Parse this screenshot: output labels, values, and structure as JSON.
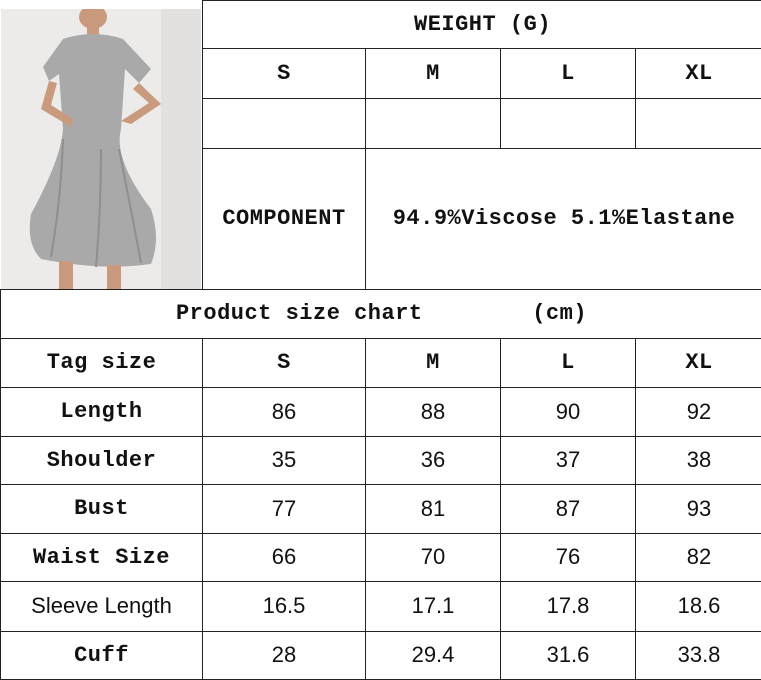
{
  "weight_header": "WEIGHT (G)",
  "sizes": [
    "S",
    "M",
    "L",
    "XL"
  ],
  "weights": [
    "",
    "",
    "",
    ""
  ],
  "component": {
    "label": "COMPONENT",
    "value": "94.9%Viscose 5.1%Elastane"
  },
  "size_chart": {
    "title": "Product size chart        (cm)",
    "header": {
      "label": "Tag size",
      "values": [
        "S",
        "M",
        "L",
        "XL"
      ]
    },
    "rows": [
      {
        "label": "Length",
        "values": [
          "86",
          "88",
          "90",
          "92"
        ]
      },
      {
        "label": "Shoulder",
        "values": [
          "35",
          "36",
          "37",
          "38"
        ]
      },
      {
        "label": "Bust",
        "values": [
          "77",
          "81",
          "87",
          "93"
        ]
      },
      {
        "label": "Waist Size",
        "values": [
          "66",
          "70",
          "76",
          "82"
        ]
      },
      {
        "label": "Sleeve Length",
        "values": [
          "16.5",
          "17.1",
          "17.8",
          "18.6"
        ]
      },
      {
        "label": "Cuff",
        "values": [
          "28",
          "29.4",
          "31.6",
          "33.8"
        ]
      }
    ]
  },
  "product_image": {
    "subject": "grey short-sleeve dress",
    "color": "#a9a9a9"
  }
}
